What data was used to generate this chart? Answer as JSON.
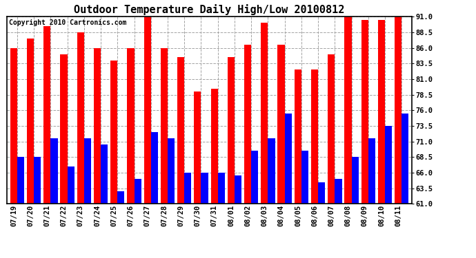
{
  "title": "Outdoor Temperature Daily High/Low 20100812",
  "copyright": "Copyright 2010 Cartronics.com",
  "dates": [
    "07/19",
    "07/20",
    "07/21",
    "07/22",
    "07/23",
    "07/24",
    "07/25",
    "07/26",
    "07/27",
    "07/28",
    "07/29",
    "07/30",
    "07/31",
    "08/01",
    "08/02",
    "08/03",
    "08/04",
    "08/05",
    "08/06",
    "08/07",
    "08/08",
    "08/09",
    "08/10",
    "08/11"
  ],
  "highs": [
    86.0,
    87.5,
    89.5,
    85.0,
    88.5,
    86.0,
    84.0,
    86.0,
    91.0,
    86.0,
    84.5,
    79.0,
    79.5,
    84.5,
    86.5,
    90.0,
    86.5,
    82.5,
    82.5,
    85.0,
    91.0,
    90.5,
    90.5,
    91.0
  ],
  "lows": [
    68.5,
    68.5,
    71.5,
    67.0,
    71.5,
    70.5,
    63.0,
    65.0,
    72.5,
    71.5,
    66.0,
    66.0,
    66.0,
    65.5,
    69.5,
    71.5,
    75.5,
    69.5,
    64.5,
    65.0,
    68.5,
    71.5,
    73.5,
    75.5
  ],
  "bar_width": 0.42,
  "high_color": "#FF0000",
  "low_color": "#0000FF",
  "bg_color": "#FFFFFF",
  "plot_bg_color": "#FFFFFF",
  "grid_color": "#999999",
  "ylim_min": 61.0,
  "ylim_max": 91.0,
  "yticks": [
    61.0,
    63.5,
    66.0,
    68.5,
    71.0,
    73.5,
    76.0,
    78.5,
    81.0,
    83.5,
    86.0,
    88.5,
    91.0
  ],
  "title_fontsize": 11,
  "tick_fontsize": 7.5,
  "copyright_fontsize": 7
}
